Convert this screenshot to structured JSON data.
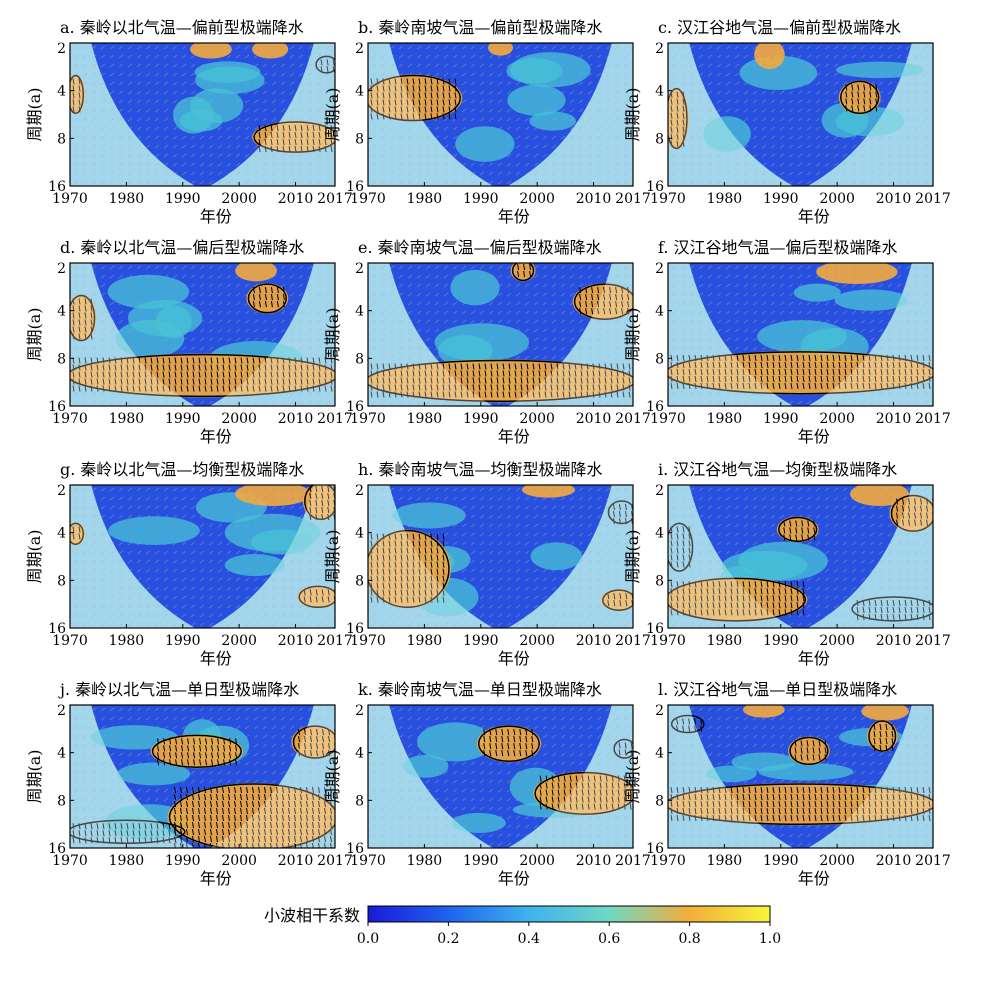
{
  "figure": {
    "colorbar": {
      "label": "小波相干系数",
      "ticks": [
        "0.0",
        "0.2",
        "0.4",
        "0.6",
        "0.8",
        "1.0"
      ],
      "range": [
        0,
        1
      ],
      "colors": [
        "#1a1ad6",
        "#1e63ee",
        "#3fb2ee",
        "#6fd8c4",
        "#f4ad39",
        "#f6f63a"
      ]
    },
    "hatch_color": "#9a9a9a",
    "arrow_color": "#000000",
    "contour_color": "#000000"
  },
  "chart_data": [
    {
      "id": "a",
      "type": "heatmap",
      "title": "a. 秦岭以北气温—偏前型极端降水",
      "xlabel": "年份",
      "ylabel": "周期(a)",
      "x_ticks": [
        "1970",
        "1980",
        "1990",
        "2000",
        "2010",
        "2017"
      ],
      "y_ticks": [
        "2",
        "4",
        "8",
        "16"
      ],
      "xlim": [
        1970,
        2017
      ],
      "ylim": [
        2,
        16
      ],
      "y_scale": "log2",
      "significant_regions": [
        {
          "year": [
            1970,
            1972
          ],
          "period": [
            3.3,
            5.4
          ]
        },
        {
          "year": [
            2003,
            2017
          ],
          "period": [
            6.5,
            9.5
          ]
        },
        {
          "year": [
            2014,
            2017
          ],
          "period": [
            2.5,
            3.0
          ]
        }
      ],
      "high_coherence": [
        {
          "year": [
            1970,
            1972
          ],
          "period": [
            3.3,
            5.4
          ]
        },
        {
          "year": [
            2003,
            2017
          ],
          "period": [
            6.5,
            9.5
          ]
        },
        {
          "year": [
            1992,
            1998
          ],
          "period": [
            2,
            2.4
          ]
        },
        {
          "year": [
            2003,
            2008
          ],
          "period": [
            2,
            2.4
          ]
        }
      ]
    },
    {
      "id": "b",
      "type": "heatmap",
      "title": "b. 秦岭南坡气温—偏前型极端降水",
      "xlabel": "年份",
      "ylabel": "周期(a)",
      "x_ticks": [
        "1970",
        "1980",
        "1990",
        "2000",
        "2010",
        "2017"
      ],
      "y_ticks": [
        "2",
        "4",
        "8",
        "16"
      ],
      "xlim": [
        1970,
        2017
      ],
      "ylim": [
        2,
        16
      ],
      "y_scale": "log2",
      "significant_regions": [
        {
          "year": [
            1970,
            1986
          ],
          "period": [
            3.3,
            6.0
          ]
        }
      ],
      "high_coherence": [
        {
          "year": [
            1970,
            1986
          ],
          "period": [
            3.3,
            6.0
          ]
        },
        {
          "year": [
            1992,
            1995
          ],
          "period": [
            2,
            2.3
          ]
        }
      ]
    },
    {
      "id": "c",
      "type": "heatmap",
      "title": "c. 汉江谷地气温—偏前型极端降水",
      "xlabel": "年份",
      "ylabel": "周期(a)",
      "x_ticks": [
        "1970",
        "1980",
        "1990",
        "2000",
        "2010",
        "2017"
      ],
      "y_ticks": [
        "2",
        "4",
        "8",
        "16"
      ],
      "xlim": [
        1970,
        2017
      ],
      "ylim": [
        2,
        16
      ],
      "y_scale": "log2",
      "significant_regions": [
        {
          "year": [
            1970,
            1973
          ],
          "period": [
            4.0,
            9.0
          ]
        },
        {
          "year": [
            2001,
            2007
          ],
          "period": [
            3.6,
            5.4
          ]
        }
      ],
      "high_coherence": [
        {
          "year": [
            1970,
            1973
          ],
          "period": [
            4.0,
            9.0
          ]
        },
        {
          "year": [
            2001,
            2007
          ],
          "period": [
            3.6,
            5.4
          ]
        },
        {
          "year": [
            1986,
            1990
          ],
          "period": [
            2,
            2.8
          ]
        }
      ]
    },
    {
      "id": "d",
      "type": "heatmap",
      "title": "d. 秦岭以北气温—偏后型极端降水",
      "xlabel": "年份",
      "ylabel": "周期(a)",
      "x_ticks": [
        "1970",
        "1980",
        "1990",
        "2000",
        "2010",
        "2017"
      ],
      "y_ticks": [
        "2",
        "4",
        "8",
        "16"
      ],
      "xlim": [
        1970,
        2017
      ],
      "ylim": [
        2,
        16
      ],
      "y_scale": "log2",
      "significant_regions": [
        {
          "year": [
            1970,
            1974
          ],
          "period": [
            3.3,
            6.0
          ]
        },
        {
          "year": [
            1970,
            2017
          ],
          "period": [
            7.8,
            13.5
          ]
        },
        {
          "year": [
            2002,
            2008
          ],
          "period": [
            2.8,
            4.0
          ]
        }
      ],
      "high_coherence": [
        {
          "year": [
            1970,
            1974
          ],
          "period": [
            3.3,
            6.0
          ]
        },
        {
          "year": [
            1970,
            2017
          ],
          "period": [
            7.8,
            13.5
          ]
        },
        {
          "year": [
            2000,
            2006
          ],
          "period": [
            2,
            2.5
          ]
        },
        {
          "year": [
            2002,
            2008
          ],
          "period": [
            2.8,
            4.0
          ]
        }
      ]
    },
    {
      "id": "e",
      "type": "heatmap",
      "title": "e. 秦岭南坡气温—偏后型极端降水",
      "xlabel": "年份",
      "ylabel": "周期(a)",
      "x_ticks": [
        "1970",
        "1980",
        "1990",
        "2000",
        "2010",
        "2017"
      ],
      "y_ticks": [
        "2",
        "4",
        "8",
        "16"
      ],
      "xlim": [
        1970,
        2017
      ],
      "ylim": [
        2,
        16
      ],
      "y_scale": "log2",
      "significant_regions": [
        {
          "year": [
            1970,
            2017
          ],
          "period": [
            8.5,
            14.5
          ]
        },
        {
          "year": [
            2007,
            2017
          ],
          "period": [
            2.8,
            4.4
          ]
        },
        {
          "year": [
            1996,
            1999
          ],
          "period": [
            2,
            2.5
          ]
        }
      ],
      "high_coherence": [
        {
          "year": [
            1970,
            2017
          ],
          "period": [
            8.5,
            14.5
          ]
        },
        {
          "year": [
            2007,
            2017
          ],
          "period": [
            2.8,
            4.4
          ]
        },
        {
          "year": [
            1996,
            1999
          ],
          "period": [
            2,
            2.5
          ]
        }
      ]
    },
    {
      "id": "f",
      "type": "heatmap",
      "title": "f. 汉江谷地气温—偏后型极端降水",
      "xlabel": "年份",
      "ylabel": "周期(a)",
      "x_ticks": [
        "1970",
        "1980",
        "1990",
        "2000",
        "2010",
        "2017"
      ],
      "y_ticks": [
        "2",
        "4",
        "8",
        "16"
      ],
      "xlim": [
        1970,
        2017
      ],
      "ylim": [
        2,
        16
      ],
      "y_scale": "log2",
      "significant_regions": [
        {
          "year": [
            1970,
            2017
          ],
          "period": [
            7.5,
            13.0
          ]
        }
      ],
      "high_coherence": [
        {
          "year": [
            1970,
            2017
          ],
          "period": [
            7.5,
            13.0
          ]
        },
        {
          "year": [
            1997,
            2010
          ],
          "period": [
            2,
            2.6
          ]
        }
      ]
    },
    {
      "id": "g",
      "type": "heatmap",
      "title": "g. 秦岭以北气温—均衡型极端降水",
      "xlabel": "年份",
      "ylabel": "周期(a)",
      "x_ticks": [
        "1970",
        "1980",
        "1990",
        "2000",
        "2010",
        "2017"
      ],
      "y_ticks": [
        "2",
        "4",
        "8",
        "16"
      ],
      "xlim": [
        1970,
        2017
      ],
      "ylim": [
        2,
        16
      ],
      "y_scale": "log2",
      "significant_regions": [
        {
          "year": [
            1970,
            1972
          ],
          "period": [
            3.6,
            4.6
          ]
        },
        {
          "year": [
            2011,
            2017
          ],
          "period": [
            9.0,
            11.5
          ]
        },
        {
          "year": [
            2012,
            2017
          ],
          "period": [
            2,
            3.2
          ]
        }
      ],
      "high_coherence": [
        {
          "year": [
            1970,
            1972
          ],
          "period": [
            3.6,
            4.6
          ]
        },
        {
          "year": [
            2011,
            2017
          ],
          "period": [
            9.0,
            11.5
          ]
        },
        {
          "year": [
            2000,
            2012
          ],
          "period": [
            2,
            2.6
          ]
        },
        {
          "year": [
            2012,
            2017
          ],
          "period": [
            2,
            3.2
          ]
        }
      ]
    },
    {
      "id": "h",
      "type": "heatmap",
      "title": "h. 秦岭南坡气温—均衡型极端降水",
      "xlabel": "年份",
      "ylabel": "周期(a)",
      "x_ticks": [
        "1970",
        "1980",
        "1990",
        "2000",
        "2010",
        "2017"
      ],
      "y_ticks": [
        "2",
        "4",
        "8",
        "16"
      ],
      "xlim": [
        1970,
        2017
      ],
      "ylim": [
        2,
        16
      ],
      "y_scale": "log2",
      "significant_regions": [
        {
          "year": [
            1970,
            1984
          ],
          "period": [
            4.0,
            11.5
          ]
        },
        {
          "year": [
            2012,
            2017
          ],
          "period": [
            9.5,
            12.0
          ]
        },
        {
          "year": [
            2013,
            2017
          ],
          "period": [
            2.6,
            3.4
          ]
        }
      ],
      "high_coherence": [
        {
          "year": [
            1970,
            1984
          ],
          "period": [
            4.0,
            11.5
          ]
        },
        {
          "year": [
            2012,
            2017
          ],
          "period": [
            9.5,
            12.0
          ]
        },
        {
          "year": [
            1998,
            2006
          ],
          "period": [
            2,
            2.3
          ]
        }
      ]
    },
    {
      "id": "i",
      "type": "heatmap",
      "title": "i. 汉江谷地气温—均衡型极端降水",
      "xlabel": "年份",
      "ylabel": "周期(a)",
      "x_ticks": [
        "1970",
        "1980",
        "1990",
        "2000",
        "2010",
        "2017"
      ],
      "y_ticks": [
        "2",
        "4",
        "8",
        "16"
      ],
      "xlim": [
        1970,
        2017
      ],
      "ylim": [
        2,
        16
      ],
      "y_scale": "log2",
      "significant_regions": [
        {
          "year": [
            1970,
            1974
          ],
          "period": [
            3.6,
            6.8
          ]
        },
        {
          "year": [
            1970,
            1994
          ],
          "period": [
            8.0,
            14.0
          ]
        },
        {
          "year": [
            2003,
            2017
          ],
          "period": [
            10.5,
            14.0
          ]
        },
        {
          "year": [
            1990,
            1996
          ],
          "period": [
            3.3,
            4.4
          ]
        },
        {
          "year": [
            2010,
            2017
          ],
          "period": [
            2.4,
            3.8
          ]
        }
      ],
      "high_coherence": [
        {
          "year": [
            1970,
            1994
          ],
          "period": [
            8.0,
            14.0
          ]
        },
        {
          "year": [
            1990,
            1996
          ],
          "period": [
            3.3,
            4.4
          ]
        },
        {
          "year": [
            2003,
            2012
          ],
          "period": [
            2,
            2.6
          ]
        },
        {
          "year": [
            2010,
            2017
          ],
          "period": [
            2.4,
            3.8
          ]
        }
      ]
    },
    {
      "id": "j",
      "type": "heatmap",
      "title": "j. 秦岭以北气温—单日型极端降水",
      "xlabel": "年份",
      "ylabel": "周期(a)",
      "x_ticks": [
        "1970",
        "1980",
        "1990",
        "2000",
        "2010",
        "2017"
      ],
      "y_ticks": [
        "2",
        "4",
        "8",
        "16"
      ],
      "xlim": [
        1970,
        2017
      ],
      "ylim": [
        2,
        16
      ],
      "y_scale": "log2",
      "significant_regions": [
        {
          "year": [
            1985,
            2000
          ],
          "period": [
            3.2,
            4.8
          ]
        },
        {
          "year": [
            1970,
            1990
          ],
          "period": [
            11.0,
            14.5
          ]
        },
        {
          "year": [
            1988,
            2017
          ],
          "period": [
            6.5,
            16
          ]
        },
        {
          "year": [
            2010,
            2017
          ],
          "period": [
            2.8,
            4.2
          ]
        }
      ],
      "high_coherence": [
        {
          "year": [
            1985,
            2000
          ],
          "period": [
            3.2,
            4.8
          ]
        },
        {
          "year": [
            1988,
            2017
          ],
          "period": [
            6.5,
            16
          ]
        },
        {
          "year": [
            2010,
            2017
          ],
          "period": [
            2.8,
            4.2
          ]
        }
      ]
    },
    {
      "id": "k",
      "type": "heatmap",
      "title": "k. 秦岭南坡气温—单日型极端降水",
      "xlabel": "年份",
      "ylabel": "周期(a)",
      "x_ticks": [
        "1970",
        "1980",
        "1990",
        "2000",
        "2010",
        "2017"
      ],
      "y_ticks": [
        "2",
        "4",
        "8",
        "16"
      ],
      "xlim": [
        1970,
        2017
      ],
      "ylim": [
        2,
        16
      ],
      "y_scale": "log2",
      "significant_regions": [
        {
          "year": [
            1990,
            2000
          ],
          "period": [
            2.8,
            4.4
          ]
        },
        {
          "year": [
            2000,
            2017
          ],
          "period": [
            5.5,
            9.5
          ]
        },
        {
          "year": [
            2014,
            2017
          ],
          "period": [
            3.4,
            4.2
          ]
        }
      ],
      "high_coherence": [
        {
          "year": [
            1990,
            2000
          ],
          "period": [
            2.8,
            4.4
          ]
        },
        {
          "year": [
            2000,
            2017
          ],
          "period": [
            5.5,
            9.5
          ]
        }
      ]
    },
    {
      "id": "l",
      "type": "heatmap",
      "title": "l. 汉江谷地气温—单日型极端降水",
      "xlabel": "年份",
      "ylabel": "周期(a)",
      "x_ticks": [
        "1970",
        "1980",
        "1990",
        "2000",
        "2010",
        "2017"
      ],
      "y_ticks": [
        "2",
        "4",
        "8",
        "16"
      ],
      "xlim": [
        1970,
        2017
      ],
      "ylim": [
        2,
        16
      ],
      "y_scale": "log2",
      "significant_regions": [
        {
          "year": [
            1970,
            2017
          ],
          "period": [
            6.5,
            11.0
          ]
        },
        {
          "year": [
            1992,
            1998
          ],
          "period": [
            3.3,
            4.6
          ]
        },
        {
          "year": [
            2006,
            2010
          ],
          "period": [
            2.6,
            3.8
          ]
        },
        {
          "year": [
            1971,
            1976
          ],
          "period": [
            2.4,
            2.9
          ]
        }
      ],
      "high_coherence": [
        {
          "year": [
            1970,
            2017
          ],
          "period": [
            6.5,
            11.0
          ]
        },
        {
          "year": [
            1992,
            1998
          ],
          "period": [
            3.3,
            4.6
          ]
        },
        {
          "year": [
            2006,
            2010
          ],
          "period": [
            2.6,
            3.8
          ]
        },
        {
          "year": [
            1984,
            1990
          ],
          "period": [
            2,
            2.3
          ]
        },
        {
          "year": [
            2005,
            2012
          ],
          "period": [
            2,
            2.4
          ]
        }
      ]
    }
  ]
}
